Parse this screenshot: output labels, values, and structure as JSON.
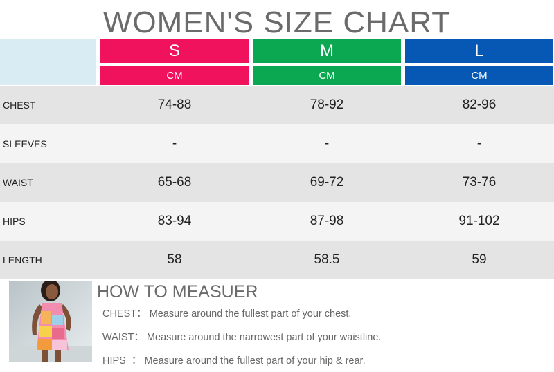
{
  "title": "WOMEN'S SIZE CHART",
  "sizes": [
    {
      "label": "S",
      "unit": "CM",
      "color": "#f0125d"
    },
    {
      "label": "M",
      "unit": "CM",
      "color": "#0ca851"
    },
    {
      "label": "L",
      "unit": "CM",
      "color": "#0658b4"
    }
  ],
  "rows": [
    {
      "label": "CHEST",
      "values": [
        "74-88",
        "78-92",
        "82-96"
      ]
    },
    {
      "label": "SLEEVES",
      "values": [
        "-",
        "-",
        "-"
      ]
    },
    {
      "label": "WAIST",
      "values": [
        "65-68",
        "69-72",
        "73-76"
      ]
    },
    {
      "label": "HIPS",
      "values": [
        "83-94",
        "87-98",
        "91-102"
      ]
    },
    {
      "label": "LENGTH",
      "values": [
        "58",
        "58.5",
        "59"
      ]
    }
  ],
  "how_to": {
    "heading": "HOW TO MEASUER",
    "items": [
      {
        "key": "CHEST：",
        "text": "Measure around the fullest part of your chest."
      },
      {
        "key": "WAIST：",
        "text": "Measure around the narrowest part of your waistline."
      },
      {
        "key": "HIPS  ：",
        "text": "Measure around the fullest part of your hip & rear."
      }
    ]
  }
}
